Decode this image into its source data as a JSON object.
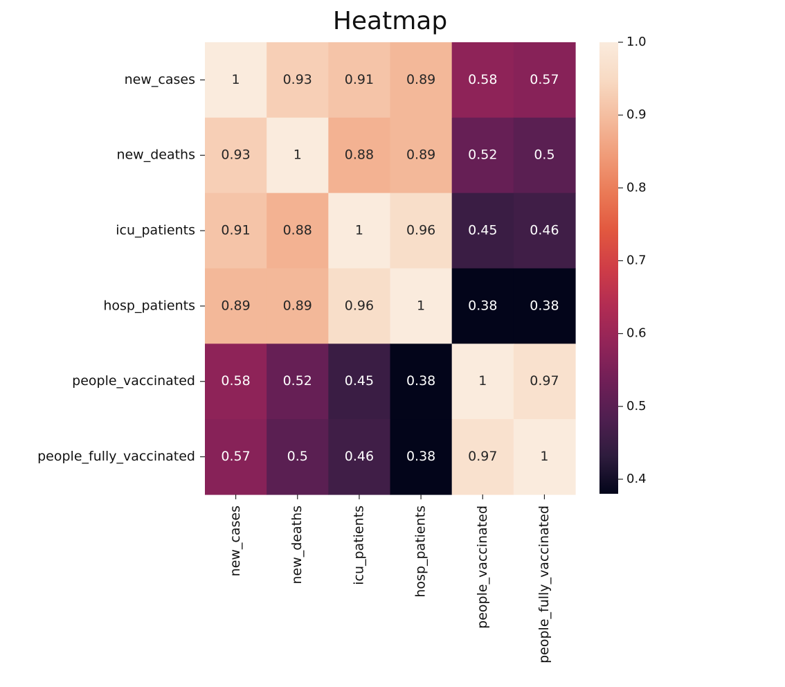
{
  "chart_data": {
    "type": "heatmap",
    "title": "Heatmap",
    "xlabel": "",
    "ylabel": "",
    "x_categories": [
      "new_cases",
      "new_deaths",
      "icu_patients",
      "hosp_patients",
      "people_vaccinated",
      "people_fully_vaccinated"
    ],
    "y_categories": [
      "new_cases",
      "new_deaths",
      "icu_patients",
      "hosp_patients",
      "people_vaccinated",
      "people_fully_vaccinated"
    ],
    "values": [
      [
        1,
        0.93,
        0.91,
        0.89,
        0.58,
        0.57
      ],
      [
        0.93,
        1,
        0.88,
        0.89,
        0.52,
        0.5
      ],
      [
        0.91,
        0.88,
        1,
        0.96,
        0.45,
        0.46
      ],
      [
        0.89,
        0.89,
        0.96,
        1,
        0.38,
        0.38
      ],
      [
        0.58,
        0.52,
        0.45,
        0.38,
        1,
        0.97
      ],
      [
        0.57,
        0.5,
        0.46,
        0.38,
        0.97,
        1
      ]
    ],
    "annotations": [
      [
        "1",
        "0.93",
        "0.91",
        "0.89",
        "0.58",
        "0.57"
      ],
      [
        "0.93",
        "1",
        "0.88",
        "0.89",
        "0.52",
        "0.5"
      ],
      [
        "0.91",
        "0.88",
        "1",
        "0.96",
        "0.45",
        "0.46"
      ],
      [
        "0.89",
        "0.89",
        "0.96",
        "1",
        "0.38",
        "0.38"
      ],
      [
        "0.58",
        "0.52",
        "0.45",
        "0.38",
        "1",
        "0.97"
      ],
      [
        "0.57",
        "0.5",
        "0.46",
        "0.38",
        "0.97",
        "1"
      ]
    ],
    "colorbar": {
      "range": [
        0.38,
        1.0
      ],
      "ticks": [
        0.4,
        0.5,
        0.6,
        0.7,
        0.8,
        0.9,
        1.0
      ],
      "tick_labels": [
        "0.4",
        "0.5",
        "0.6",
        "0.7",
        "0.8",
        "0.9",
        "1.0"
      ],
      "colormap": "rocket",
      "colors": [
        "#03051a",
        "#2e1c3d",
        "#4f1f50",
        "#701f57",
        "#922458",
        "#b22c53",
        "#cf3d47",
        "#e2583f",
        "#ea7a56",
        "#f09c79",
        "#f4bc9e",
        "#f8dac3",
        "#faebdd"
      ]
    }
  }
}
